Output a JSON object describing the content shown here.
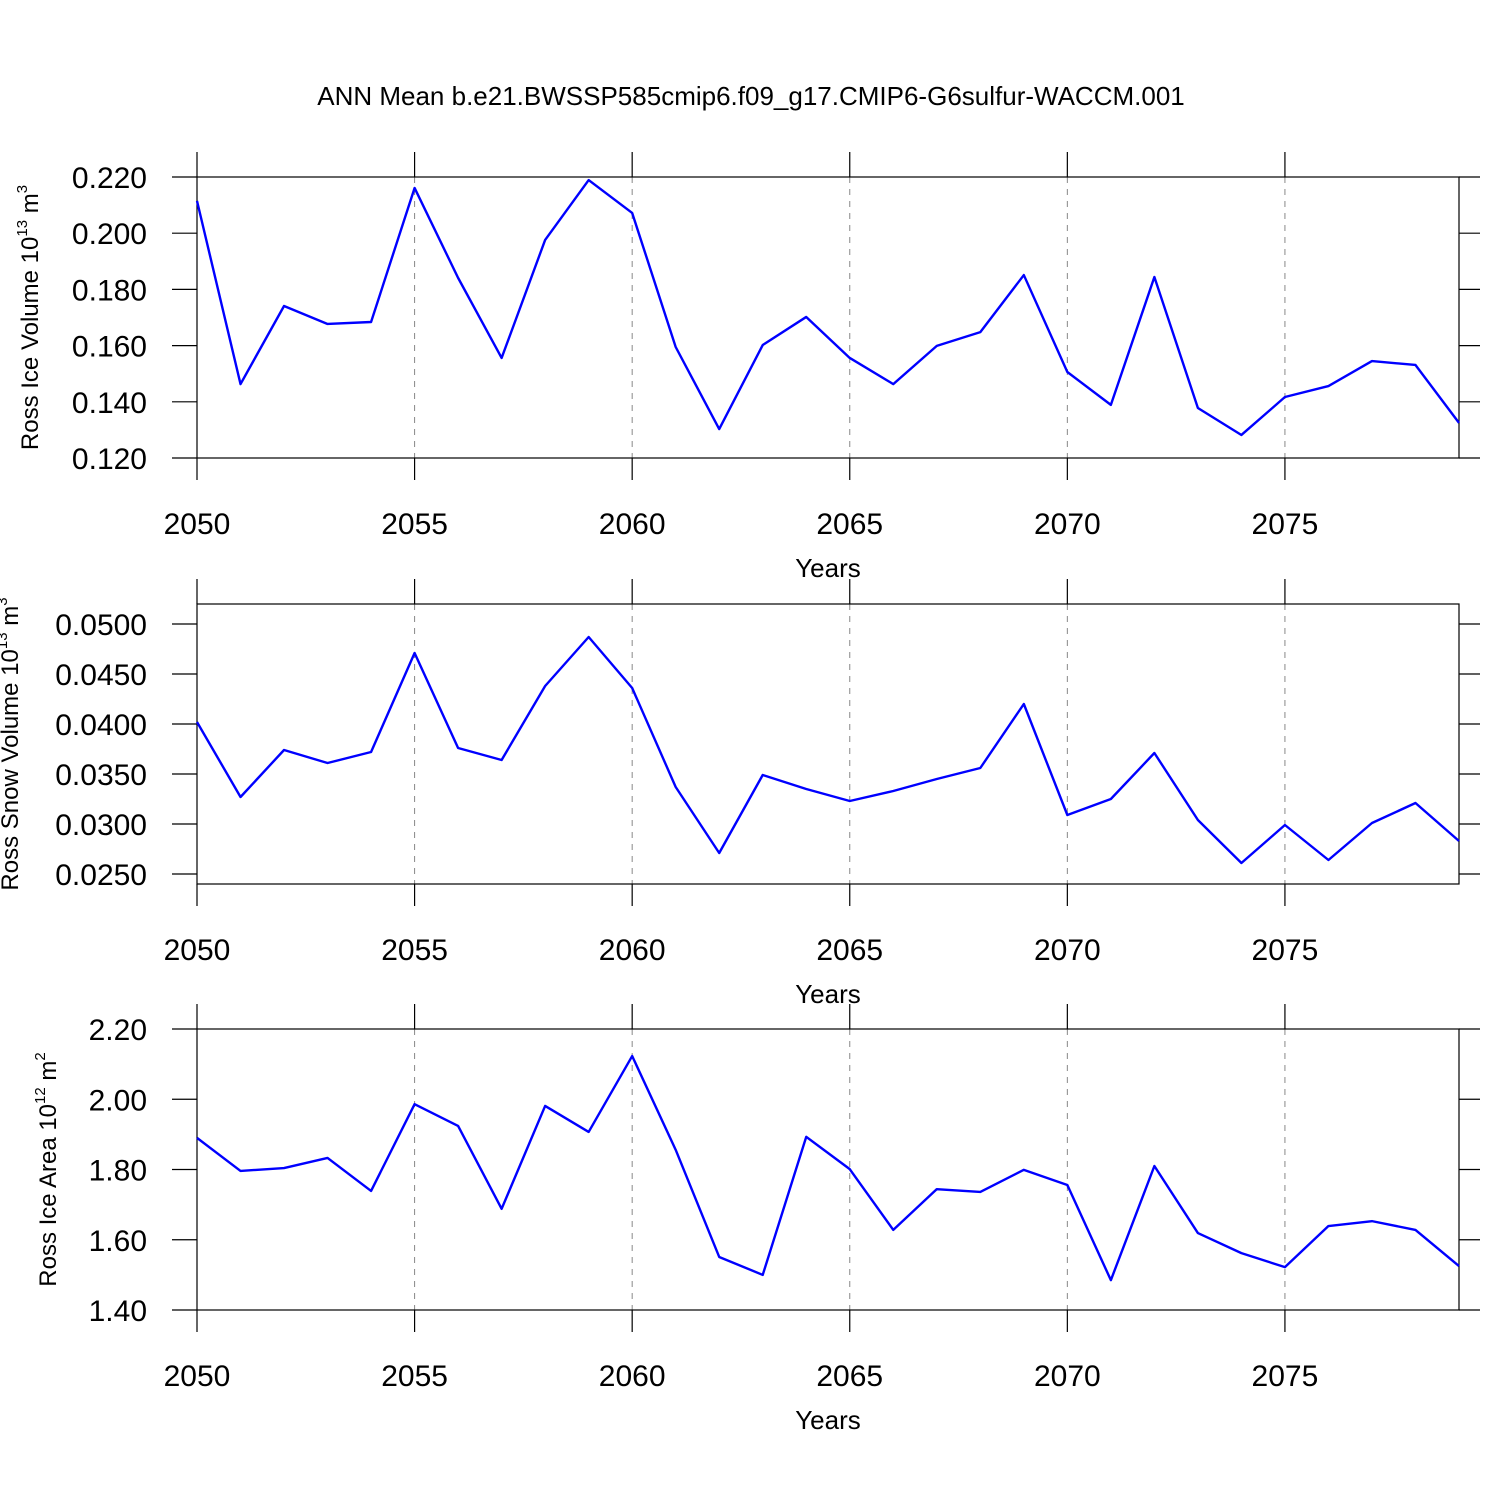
{
  "chart_data": [
    {
      "type": "line",
      "title": "ANN Mean b.e21.BWSSP585cmip6.f09_g17.CMIP6-G6sulfur-WACCM.001",
      "xlabel": "Years",
      "ylabel": [
        "Ross Ice Volume 10",
        "13",
        " m",
        "3"
      ],
      "x": [
        2050,
        2051,
        2052,
        2053,
        2054,
        2055,
        2056,
        2057,
        2058,
        2059,
        2060,
        2061,
        2062,
        2063,
        2064,
        2065,
        2066,
        2067,
        2068,
        2069,
        2070,
        2071,
        2072,
        2073,
        2074,
        2075,
        2076,
        2077,
        2078,
        2079
      ],
      "values": [
        0.2115,
        0.1463,
        0.1741,
        0.1677,
        0.1684,
        0.2161,
        0.1841,
        0.1556,
        0.1976,
        0.2189,
        0.2072,
        0.1595,
        0.1303,
        0.1602,
        0.1702,
        0.1556,
        0.1463,
        0.1599,
        0.1648,
        0.1851,
        0.1506,
        0.1389,
        0.1844,
        0.1378,
        0.1282,
        0.1417,
        0.1456,
        0.1545,
        0.1531,
        0.1325
      ],
      "color": "#0000ff",
      "xlim": [
        2050,
        2079
      ],
      "xticks": [
        2050,
        2055,
        2060,
        2065,
        2070,
        2075
      ],
      "ylim": [
        0.12,
        0.22
      ],
      "yticks": [
        {
          "value": 0.12,
          "label": "0.120"
        },
        {
          "value": 0.14,
          "label": "0.140"
        },
        {
          "value": 0.16,
          "label": "0.160"
        },
        {
          "value": 0.18,
          "label": "0.180"
        },
        {
          "value": 0.2,
          "label": "0.200"
        },
        {
          "value": 0.22,
          "label": "0.220"
        }
      ],
      "grid": "x"
    },
    {
      "type": "line",
      "xlabel": "Years",
      "ylabel": [
        "Ross Snow Volume 10",
        "13",
        " m",
        "3"
      ],
      "x": [
        2050,
        2051,
        2052,
        2053,
        2054,
        2055,
        2056,
        2057,
        2058,
        2059,
        2060,
        2061,
        2062,
        2063,
        2064,
        2065,
        2066,
        2067,
        2068,
        2069,
        2070,
        2071,
        2072,
        2073,
        2074,
        2075,
        2076,
        2077,
        2078,
        2079
      ],
      "values": [
        0.0402,
        0.0327,
        0.0374,
        0.0361,
        0.0372,
        0.0471,
        0.0376,
        0.0364,
        0.0438,
        0.0487,
        0.0436,
        0.0337,
        0.0271,
        0.0349,
        0.0335,
        0.0323,
        0.0333,
        0.0345,
        0.0356,
        0.042,
        0.0309,
        0.0325,
        0.0371,
        0.0304,
        0.0261,
        0.0299,
        0.0264,
        0.0301,
        0.0321,
        0.0283
      ],
      "color": "#0000ff",
      "xlim": [
        2050,
        2079
      ],
      "xticks": [
        2050,
        2055,
        2060,
        2065,
        2070,
        2075
      ],
      "ylim": [
        0.024,
        0.052
      ],
      "yticks": [
        {
          "value": 0.025,
          "label": "0.0250"
        },
        {
          "value": 0.03,
          "label": "0.0300"
        },
        {
          "value": 0.035,
          "label": "0.0350"
        },
        {
          "value": 0.04,
          "label": "0.0400"
        },
        {
          "value": 0.045,
          "label": "0.0450"
        },
        {
          "value": 0.05,
          "label": "0.0500"
        }
      ],
      "grid": "x"
    },
    {
      "type": "line",
      "xlabel": "Years",
      "ylabel": [
        "Ross Ice Area 10",
        "12",
        " m",
        "2"
      ],
      "x": [
        2050,
        2051,
        2052,
        2053,
        2054,
        2055,
        2056,
        2057,
        2058,
        2059,
        2060,
        2061,
        2062,
        2063,
        2064,
        2065,
        2066,
        2067,
        2068,
        2069,
        2070,
        2071,
        2072,
        2073,
        2074,
        2075,
        2076,
        2077,
        2078,
        2079
      ],
      "values": [
        1.89,
        1.796,
        1.804,
        1.833,
        1.739,
        1.986,
        1.924,
        1.688,
        1.981,
        1.907,
        2.123,
        1.856,
        1.551,
        1.5,
        1.893,
        1.801,
        1.628,
        1.744,
        1.736,
        1.799,
        1.756,
        1.485,
        1.81,
        1.619,
        1.562,
        1.522,
        1.639,
        1.653,
        1.628,
        1.525
      ],
      "color": "#0000ff",
      "xlim": [
        2050,
        2079
      ],
      "xticks": [
        2050,
        2055,
        2060,
        2065,
        2070,
        2075
      ],
      "ylim": [
        1.4,
        2.2
      ],
      "yticks": [
        {
          "value": 1.4,
          "label": "1.40"
        },
        {
          "value": 1.6,
          "label": "1.60"
        },
        {
          "value": 1.8,
          "label": "1.80"
        },
        {
          "value": 2.0,
          "label": "2.00"
        },
        {
          "value": 2.2,
          "label": "2.20"
        }
      ],
      "grid": "x"
    }
  ]
}
